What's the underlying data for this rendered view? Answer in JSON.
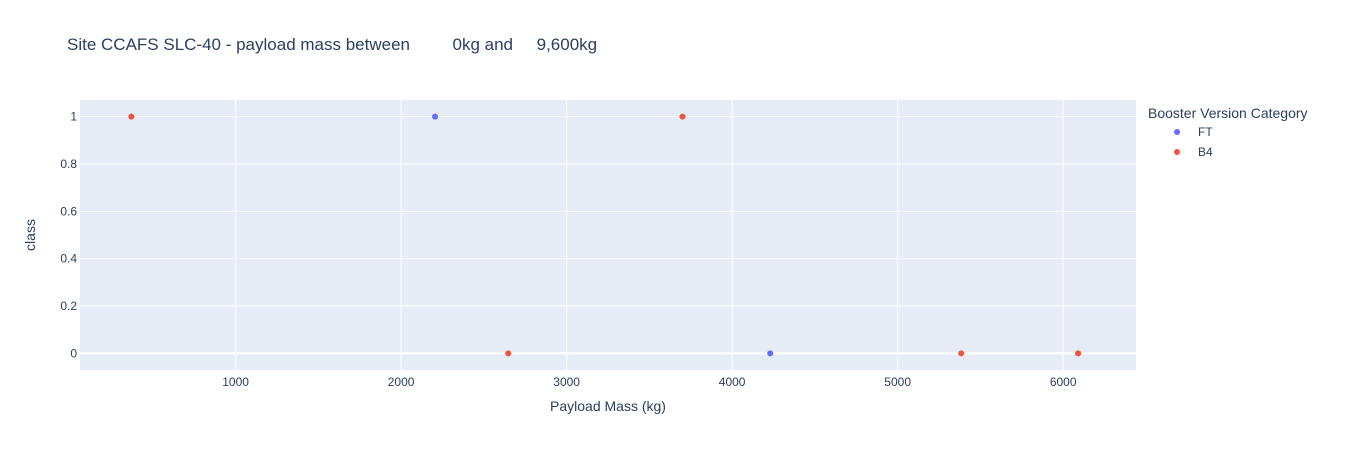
{
  "chart_data": {
    "type": "scatter",
    "title": "Site CCAFS SLC-40 - payload mass between         0kg and     9,600kg",
    "xlabel": "Payload Mass (kg)",
    "ylabel": "class",
    "xlim": [
      60,
      6440
    ],
    "ylim": [
      -0.07,
      1.07
    ],
    "x_ticks": [
      1000,
      2000,
      3000,
      4000,
      5000,
      6000
    ],
    "y_ticks": [
      0,
      0.2,
      0.4,
      0.6,
      0.8,
      1
    ],
    "grid": true,
    "legend": {
      "title": "Booster Version Category",
      "placement": "top-right-outside"
    },
    "series": [
      {
        "name": "FT",
        "color": "#636efa",
        "points": [
          {
            "x": 2205,
            "y": 1
          },
          {
            "x": 4230,
            "y": 0
          }
        ]
      },
      {
        "name": "B4",
        "color": "#ef553b",
        "points": [
          {
            "x": 370,
            "y": 1
          },
          {
            "x": 2647,
            "y": 0
          },
          {
            "x": 3700,
            "y": 1
          },
          {
            "x": 5384,
            "y": 0
          },
          {
            "x": 6090,
            "y": 0
          }
        ]
      }
    ]
  },
  "colors": {
    "plot_background": "#e5ecf6",
    "gridline": "#ffffff",
    "text": "#2a3f5f"
  }
}
